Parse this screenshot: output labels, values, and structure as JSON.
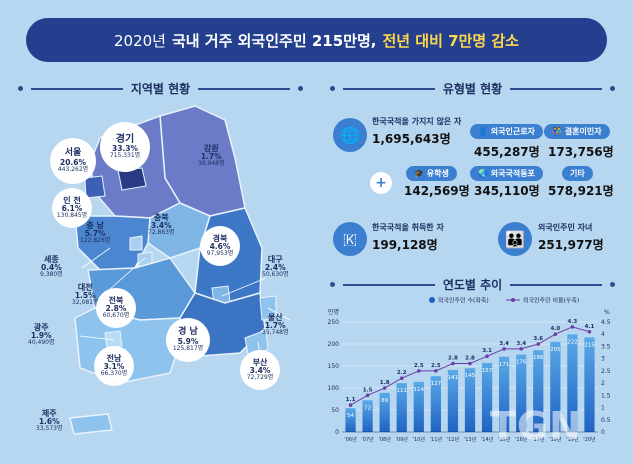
{
  "title": {
    "year": "2020년",
    "main": "국내 거주 외국인주민 215만명,",
    "highlight": "전년 대비 7만명 감소"
  },
  "sections": {
    "regional": "지역별 현황",
    "types": "유형별 현황",
    "trend": "연도별 추이"
  },
  "regions": [
    {
      "name": "경기",
      "pct": "33.3%",
      "count": "715,331명"
    },
    {
      "name": "서울",
      "pct": "20.6%",
      "count": "443,262명"
    },
    {
      "name": "강원",
      "pct": "1.7%",
      "count": "36,948명"
    },
    {
      "name": "인 천",
      "pct": "6.1%",
      "count": "130,845명"
    },
    {
      "name": "충 남",
      "pct": "5.7%",
      "count": "122,826명"
    },
    {
      "name": "충북",
      "pct": "3.4%",
      "count": "72,863명"
    },
    {
      "name": "경북",
      "pct": "4.6%",
      "count": "97,953명"
    },
    {
      "name": "세종",
      "pct": "0.4%",
      "count": "9,380명"
    },
    {
      "name": "대전",
      "pct": "1.5%",
      "count": "32,081명"
    },
    {
      "name": "전북",
      "pct": "2.8%",
      "count": "60,670명"
    },
    {
      "name": "대구",
      "pct": "2.4%",
      "count": "50,630명"
    },
    {
      "name": "광주",
      "pct": "1.9%",
      "count": "40,490명"
    },
    {
      "name": "경 남",
      "pct": "5.9%",
      "count": "125,817명"
    },
    {
      "name": "울산",
      "pct": "1.7%",
      "count": "35,748명"
    },
    {
      "name": "전남",
      "pct": "3.1%",
      "count": "66,370명"
    },
    {
      "name": "부산",
      "pct": "3.4%",
      "count": "72,729명"
    },
    {
      "name": "제주",
      "pct": "1.6%",
      "count": "33,573명"
    }
  ],
  "types": {
    "non_citizen": {
      "label": "한국국적을 가지지 않은 자",
      "value": "1,695,643명"
    },
    "workers": {
      "label": "외국인근로자",
      "value": "455,287명"
    },
    "marriage": {
      "label": "결혼이민자",
      "value": "173,756명"
    },
    "students": {
      "label": "유학생",
      "value": "142,569명"
    },
    "koreans_abroad": {
      "label": "외국국적동포",
      "value": "345,110명"
    },
    "others": {
      "label": "기타",
      "value": "578,921명"
    },
    "naturalized": {
      "label": "한국국적을 취득한 자",
      "value": "199,128명"
    },
    "children": {
      "label": "외국인주민 자녀",
      "value": "251,977명"
    }
  },
  "chart_data": {
    "type": "bar",
    "legend": [
      "외국인주민 수(좌축)",
      "외국인주민 비율(우축)"
    ],
    "left_axis_unit": "만명",
    "right_axis_unit": "%",
    "categories": [
      "'06년",
      "'07년",
      "'08년",
      "'09년",
      "'10년",
      "'11년",
      "'12년",
      "'13년",
      "'14년",
      "'15년",
      "'16년",
      "'17년",
      "'18년",
      "'19년",
      "'20년"
    ],
    "series": [
      {
        "name": "외국인주민 수(좌축)",
        "values": [
          54,
          72,
          89,
          111,
          114,
          127,
          141,
          145,
          157,
          171,
          176,
          186,
          205,
          222,
          215
        ]
      },
      {
        "name": "외국인주민 비율(우축)",
        "values": [
          1.1,
          1.5,
          1.8,
          2.2,
          2.5,
          2.5,
          2.8,
          2.8,
          3.1,
          3.4,
          3.4,
          3.6,
          4.0,
          4.3,
          4.1
        ]
      }
    ],
    "ylim_left": [
      0,
      250
    ],
    "ylim_right": [
      0,
      4.5
    ],
    "yticks_left": [
      "0",
      "50",
      "100",
      "150",
      "200",
      "250"
    ],
    "yticks_right": [
      "0",
      "0.5",
      "1",
      "1.5",
      "2",
      "2.5",
      "3",
      "3.5",
      "4",
      "4.5"
    ],
    "colors": {
      "bar_start": "#5aa9e6",
      "bar_end": "#1e63c4",
      "line": "#6f3fa8"
    }
  },
  "watermark": "TGN"
}
